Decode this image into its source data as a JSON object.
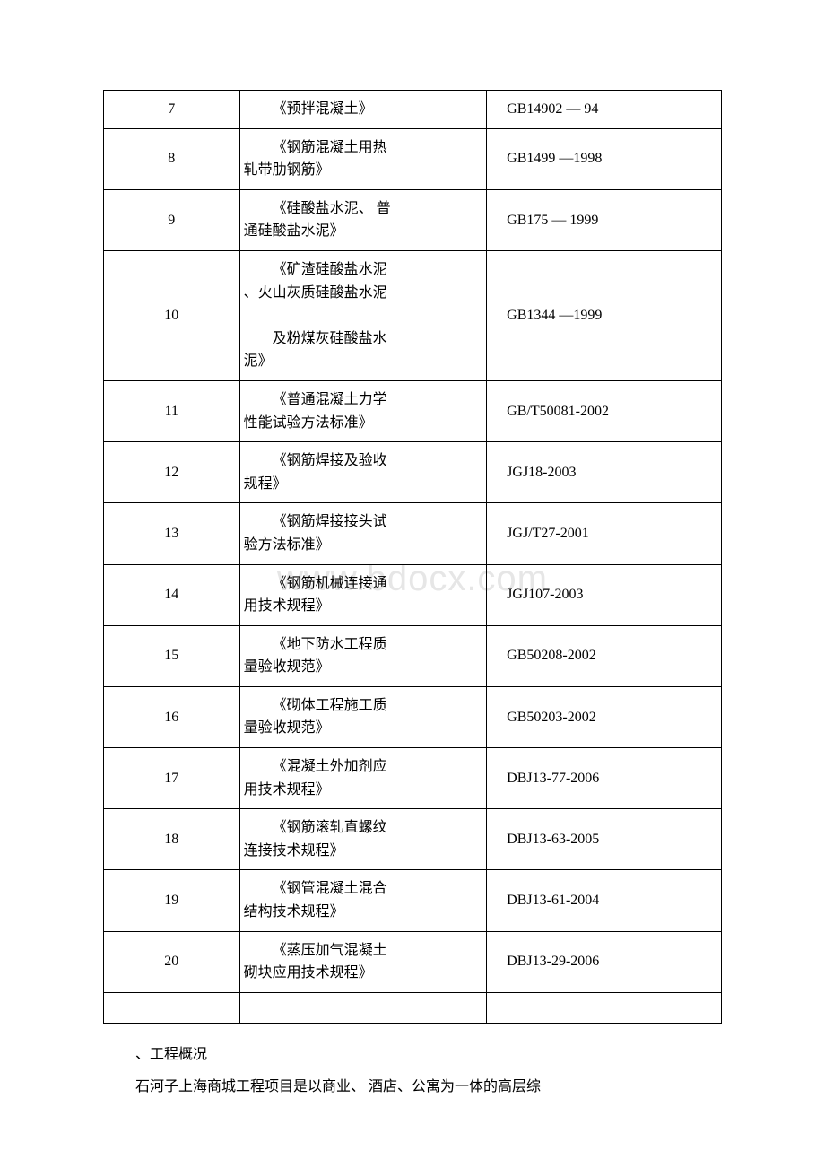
{
  "watermark_text": "www.bdocx.com",
  "table": {
    "border_color": "#000000",
    "font_size": 16,
    "rows": [
      {
        "num": "7",
        "title_lines": [
          "《预拌混凝土》"
        ],
        "code": "GB14902 — 94"
      },
      {
        "num": "8",
        "title_lines": [
          "《钢筋混凝土用热",
          "轧带肋钢筋》"
        ],
        "code": "GB1499 —1998"
      },
      {
        "num": "9",
        "title_lines": [
          "《硅酸盐水泥、 普",
          "通硅酸盐水泥》"
        ],
        "code": "GB175 — 1999"
      },
      {
        "num": "10",
        "title_lines": [
          "《矿渣硅酸盐水泥",
          "、火山灰质硅酸盐水泥",
          "",
          "及粉煤灰硅酸盐水",
          "泥》"
        ],
        "code": "GB1344 —1999",
        "tall": true
      },
      {
        "num": "11",
        "title_lines": [
          "《普通混凝土力学",
          "性能试验方法标准》"
        ],
        "code": "GB/T50081-2002"
      },
      {
        "num": "12",
        "title_lines": [
          "《钢筋焊接及验收",
          "规程》"
        ],
        "code": "JGJ18-2003"
      },
      {
        "num": "13",
        "title_lines": [
          "《钢筋焊接接头试",
          "验方法标准》"
        ],
        "code": "JGJ/T27-2001"
      },
      {
        "num": "14",
        "title_lines": [
          "《钢筋机械连接通",
          "用技术规程》"
        ],
        "code": "JGJ107-2003"
      },
      {
        "num": "15",
        "title_lines": [
          "《地下防水工程质",
          "量验收规范》"
        ],
        "code": "GB50208-2002"
      },
      {
        "num": "16",
        "title_lines": [
          "《砌体工程施工质",
          "量验收规范》"
        ],
        "code": "GB50203-2002"
      },
      {
        "num": "17",
        "title_lines": [
          "《混凝土外加剂应",
          "用技术规程》"
        ],
        "code": "DBJ13-77-2006"
      },
      {
        "num": "18",
        "title_lines": [
          "《钢筋滚轧直螺纹",
          "连接技术规程》"
        ],
        "code": "DBJ13-63-2005"
      },
      {
        "num": "19",
        "title_lines": [
          "《钢管混凝土混合",
          "结构技术规程》"
        ],
        "code": "DBJ13-61-2004"
      },
      {
        "num": "20",
        "title_lines": [
          "《蒸压加气混凝土",
          "砌块应用技术规程》"
        ],
        "code": "DBJ13-29-2006"
      }
    ]
  },
  "paragraphs": {
    "line1": "、工程概况",
    "line2": "石河子上海商城工程项目是以商业、 酒店、公寓为一体的高层综"
  },
  "colors": {
    "background": "#ffffff",
    "text": "#000000",
    "watermark": "#e6e6e6",
    "border": "#000000"
  }
}
